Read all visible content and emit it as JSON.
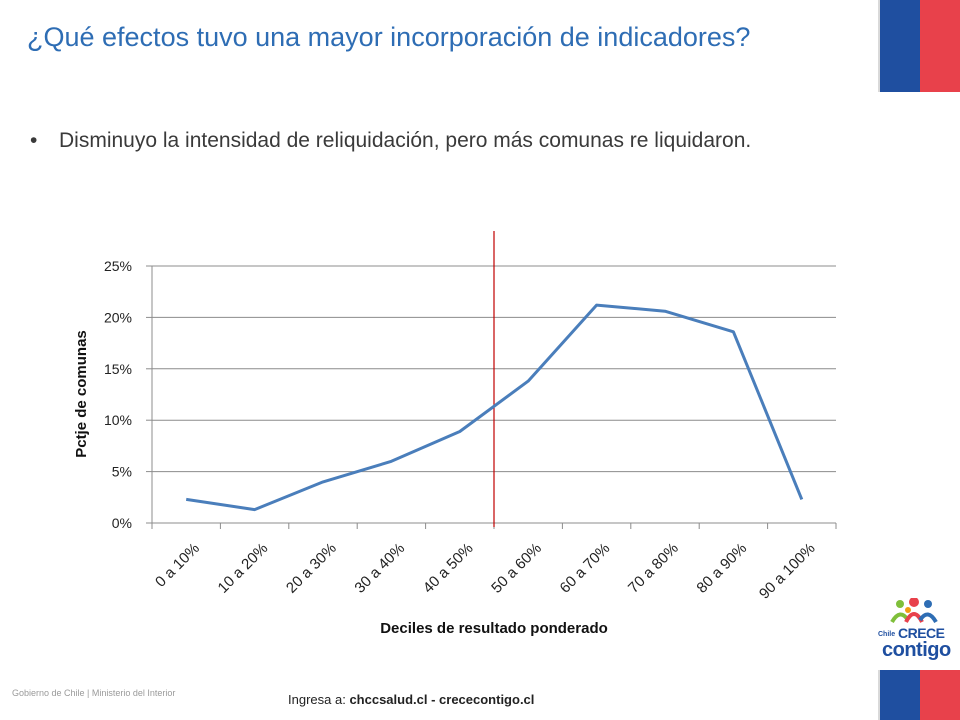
{
  "slide": {
    "title": "¿Qué efectos tuvo una mayor incorporación de indicadores?",
    "bullet_marker": "•",
    "bullet": "Disminuyo la intensidad de reliquidación, pero más comunas re liquidaron."
  },
  "footer": {
    "left": "Gobierno de Chile | Ministerio del Interior",
    "center_prefix": "Ingresa a: ",
    "center_links": "chccsalud.cl - crececontigo.cl"
  },
  "logo": {
    "line1": "Chile",
    "line2": "CRECE",
    "line3": "contigo"
  },
  "colors": {
    "title": "#2e6db4",
    "series": "#4a7ebb",
    "marker_line": "#c00000",
    "flag_blue": "#1f4fa0",
    "flag_red": "#e8414b"
  },
  "chart_data": {
    "type": "line",
    "categories": [
      "0 a 10%",
      "10 a 20%",
      "20 a 30%",
      "30 a 40%",
      "40 a 50%",
      "50 a 60%",
      "60 a 70%",
      "70 a 80%",
      "80 a 90%",
      "90 a 100%"
    ],
    "series": [
      {
        "values": [
          0.023,
          0.013,
          0.04,
          0.06,
          0.089,
          0.138,
          0.212,
          0.206,
          0.186,
          0.023
        ]
      }
    ],
    "xlabel": "Deciles de resultado ponderado",
    "ylabel": "Pctje de comunas",
    "ylim": [
      0,
      0.25
    ],
    "yticks": [
      "0%",
      "5%",
      "10%",
      "15%",
      "20%",
      "25%"
    ],
    "ytick_values": [
      0,
      0.05,
      0.1,
      0.15,
      0.2,
      0.25
    ],
    "grid": true,
    "vertical_marker_category_index": 5
  }
}
